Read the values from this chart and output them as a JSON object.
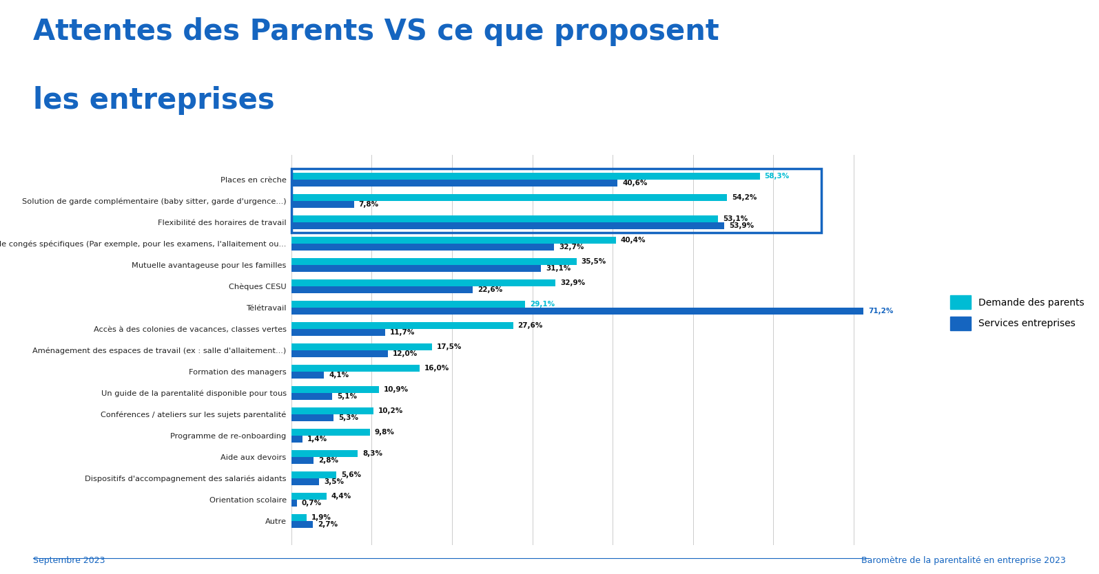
{
  "title_line1": "Attentes des Parents VS ce que proposent",
  "title_line2": "les entreprises",
  "title_color": "#1565C0",
  "bg_color": "#ffffff",
  "categories": [
    "Places en crèche",
    "Solution de garde complémentaire (baby sitter, garde d'urgence...)",
    "Flexibilité des horaires de travail",
    "Jours de congés spécifiques (Par exemple, pour les examens, l'allaitement ou...",
    "Mutuelle avantageuse pour les familles",
    "Chèques CESU",
    "Télétravail",
    "Accès à des colonies de vacances, classes vertes",
    "Aménagement des espaces de travail (ex : salle d'allaitement...)",
    "Formation des managers",
    "Un guide de la parentalité disponible pour tous",
    "Conférences / ateliers sur les sujets parentalité",
    "Programme de re-onboarding",
    "Aide aux devoirs",
    "Dispositifs d'accompagnement des salariés aidants",
    "Orientation scolaire",
    "Autre"
  ],
  "demande_parents": [
    58.3,
    54.2,
    53.1,
    40.4,
    35.5,
    32.9,
    29.1,
    27.6,
    17.5,
    16.0,
    10.9,
    10.2,
    9.8,
    8.3,
    5.6,
    4.4,
    1.9
  ],
  "services_entreprises": [
    40.6,
    7.8,
    53.9,
    32.7,
    31.1,
    22.6,
    71.2,
    11.7,
    12.0,
    4.1,
    5.1,
    5.3,
    1.4,
    2.8,
    3.5,
    0.7,
    2.7
  ],
  "color_parents": "#00BCD4",
  "color_entreprises": "#1565C0",
  "legend_label_parents": "Demande des parents",
  "legend_label_entreprises": "Services entreprises",
  "footer_left": "Septembre 2023",
  "footer_right": "Baromètre de la parentalité en entreprise 2023",
  "footer_color": "#1565C0",
  "xlabel_max": 80,
  "grid_color": "#cccccc",
  "bar_height": 0.32,
  "title_fontsize": 30,
  "label_fontsize": 7.5
}
